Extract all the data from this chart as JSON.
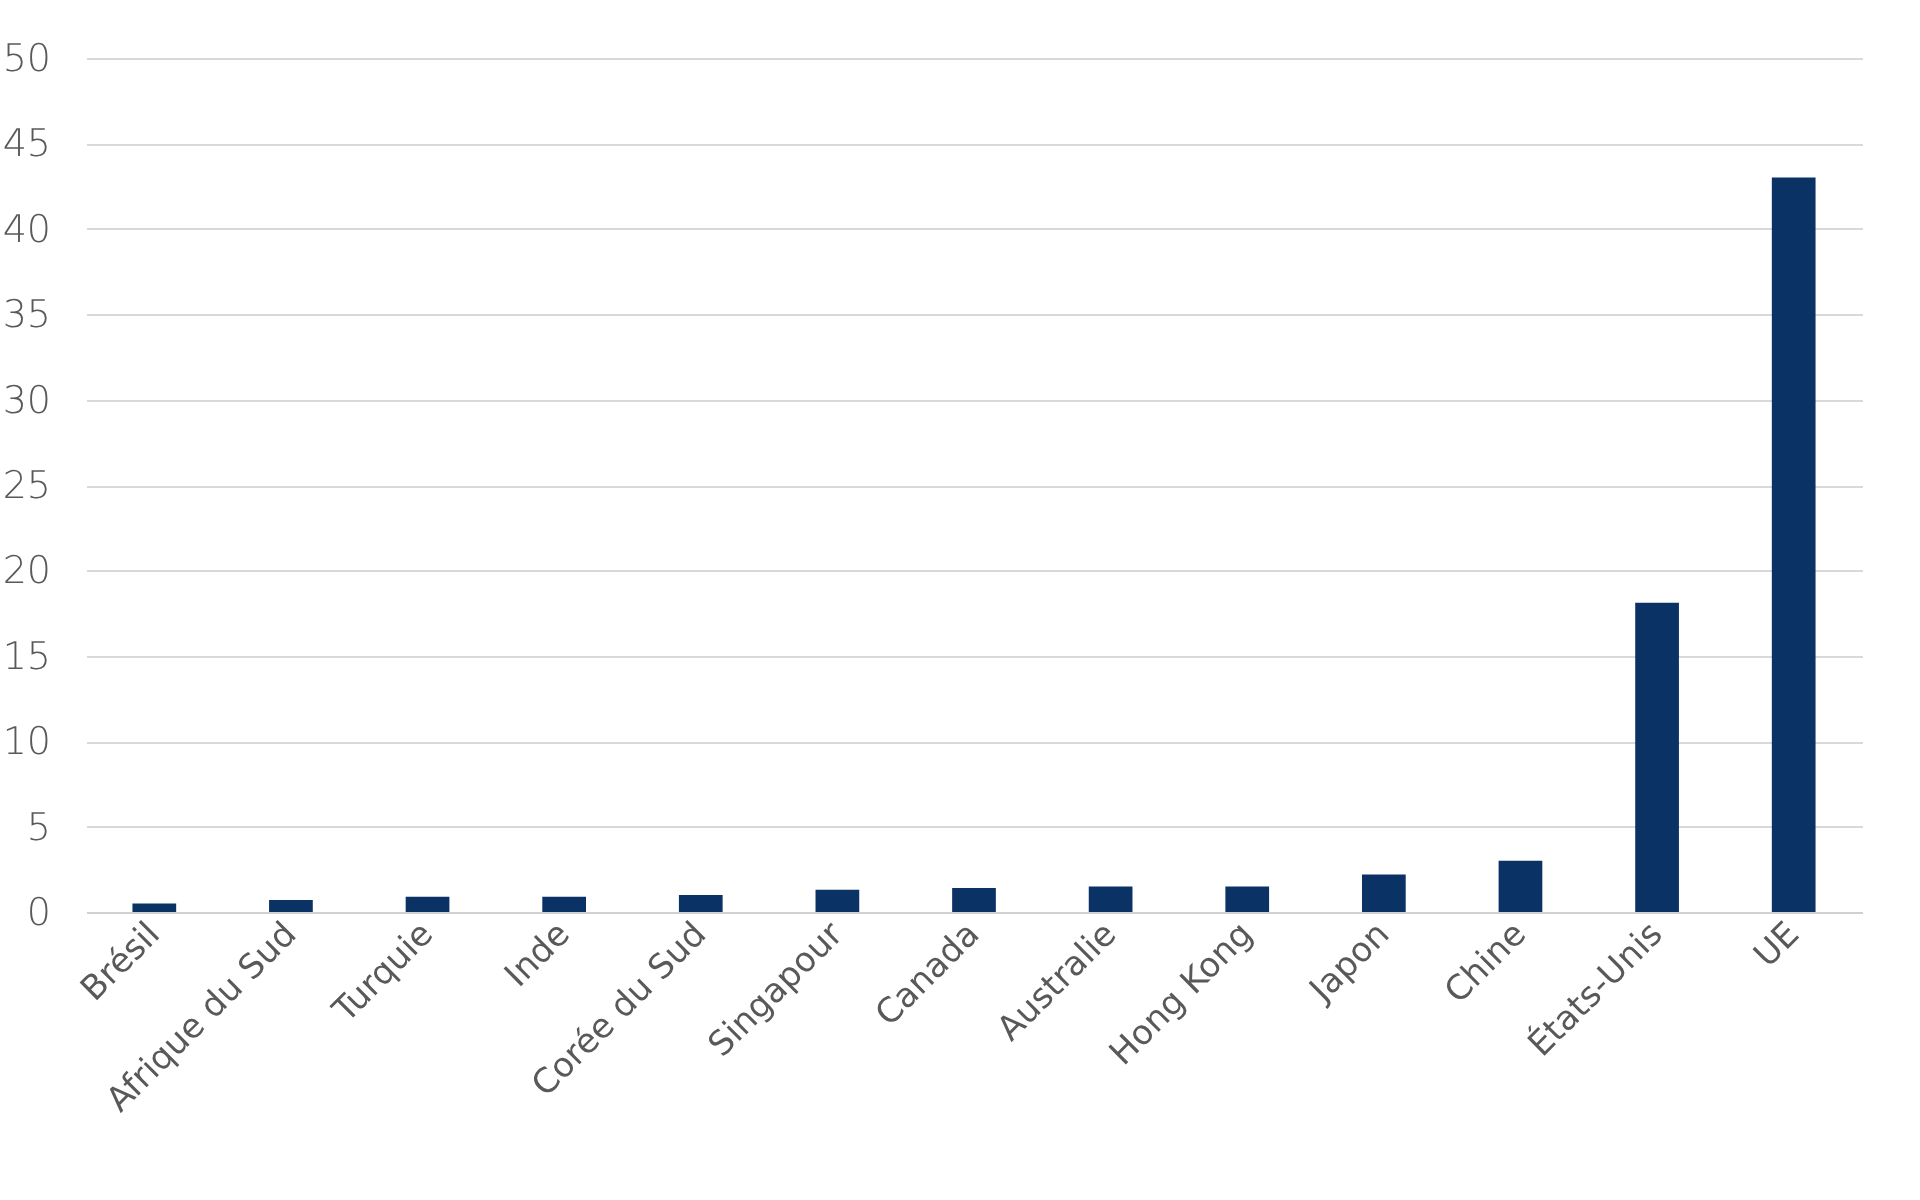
{
  "chart_data": {
    "type": "bar",
    "categories": [
      "Brésil",
      "Afrique du Sud",
      "Turquie",
      "Inde",
      "Corée du Sud",
      "Singapour",
      "Canada",
      "Australie",
      "Hong Kong",
      "Japon",
      "Chine",
      "États-Unis",
      "UE"
    ],
    "values": [
      0.5,
      0.7,
      0.9,
      0.9,
      1.0,
      1.3,
      1.4,
      1.5,
      1.5,
      2.2,
      3.0,
      18.1,
      43.0
    ],
    "color": "#0a3264",
    "ylim": [
      0,
      50
    ],
    "yticks": [
      0,
      5,
      10,
      15,
      20,
      25,
      30,
      35,
      40,
      45,
      50
    ],
    "grid": "y"
  }
}
